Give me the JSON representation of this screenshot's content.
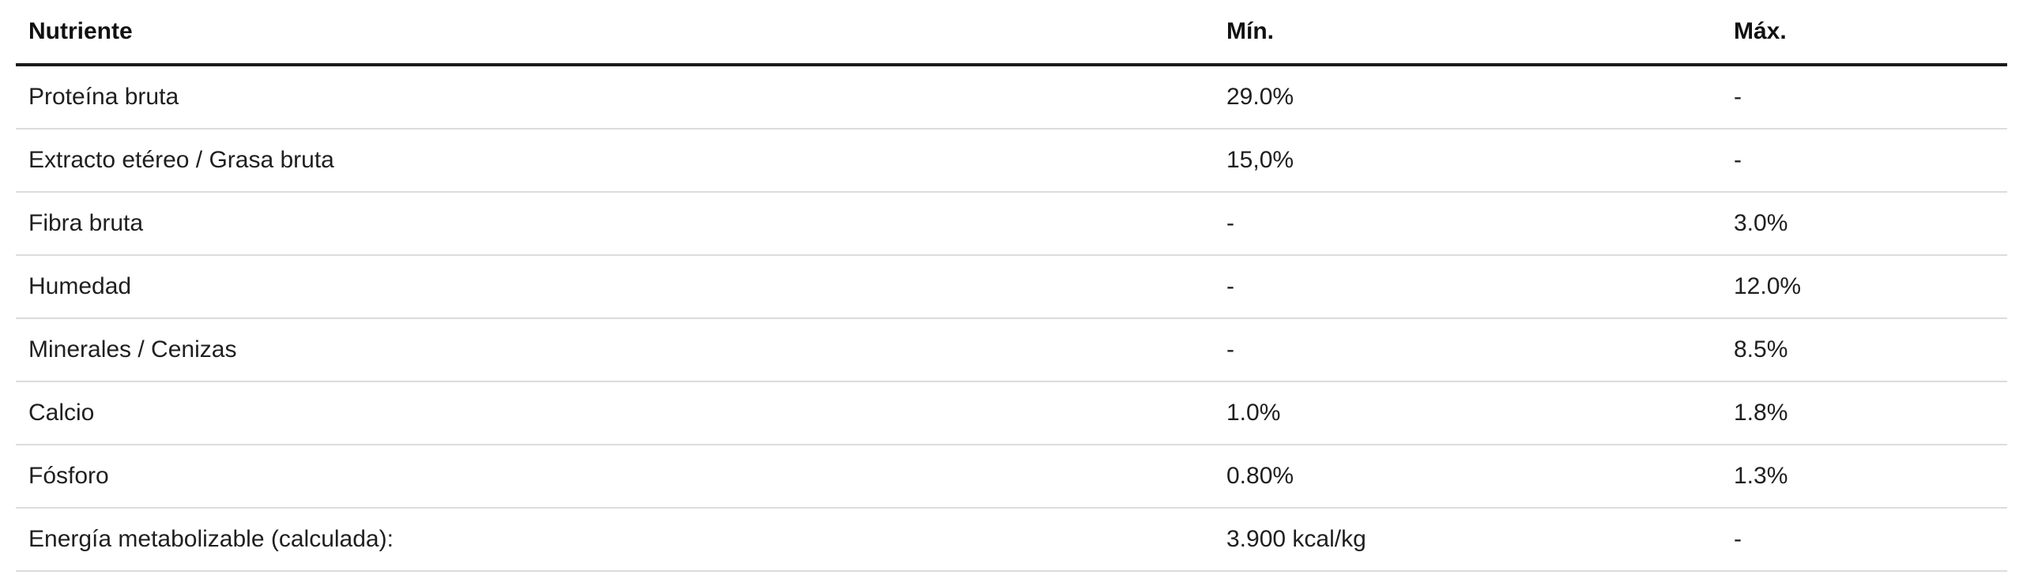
{
  "table": {
    "headers": [
      "Nutriente",
      "Mín.",
      "Máx."
    ],
    "rows": [
      [
        "Proteína bruta",
        "29.0%",
        "-"
      ],
      [
        "Extracto etéreo / Grasa bruta",
        "15,0%",
        "-"
      ],
      [
        "Fibra bruta",
        "-",
        "3.0%"
      ],
      [
        "Humedad",
        "-",
        "12.0%"
      ],
      [
        "Minerales / Cenizas",
        "-",
        "8.5%"
      ],
      [
        "Calcio",
        "1.0%",
        "1.8%"
      ],
      [
        "Fósforo",
        "0.80%",
        "1.3%"
      ],
      [
        "Energía metabolizable (calculada):",
        "3.900 kcal/kg",
        "-"
      ]
    ]
  }
}
